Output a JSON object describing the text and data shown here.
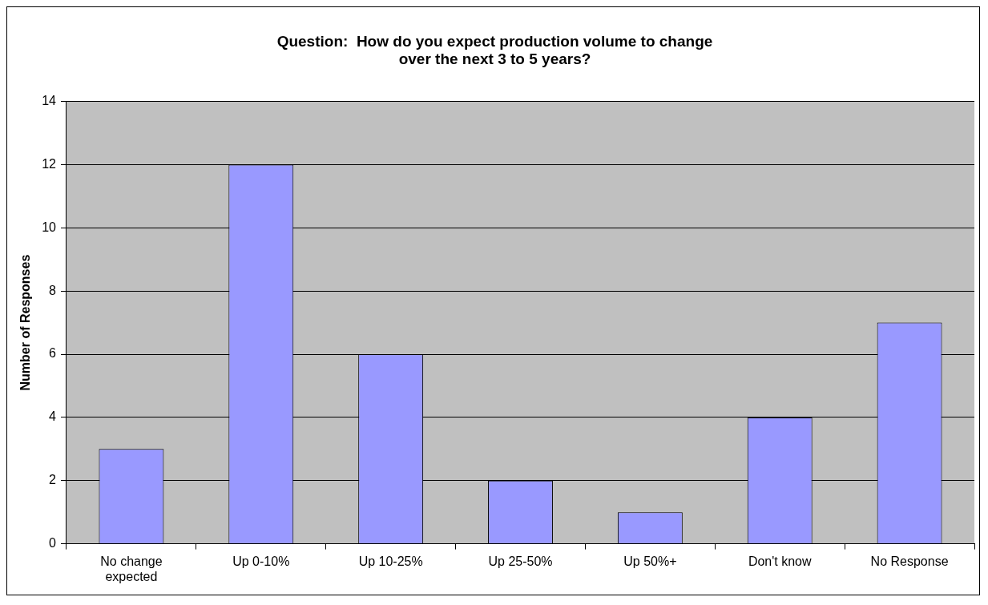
{
  "chart_data": {
    "type": "bar",
    "title": "Question:  How do you expect production volume to change over the next 3 to 5 years?",
    "ylabel": "Number of Responses",
    "categories": [
      "No change expected",
      "Up 0-10%",
      "Up 10-25%",
      "Up 25-50%",
      "Up 50%+",
      "Don't know",
      "No Response"
    ],
    "values": [
      3,
      12,
      6,
      2,
      1,
      4,
      7
    ],
    "color": "#9999ff",
    "ylim": [
      0,
      14
    ],
    "yticks": [
      0,
      2,
      4,
      6,
      8,
      10,
      12,
      14
    ],
    "grid": "y",
    "legend": false
  }
}
